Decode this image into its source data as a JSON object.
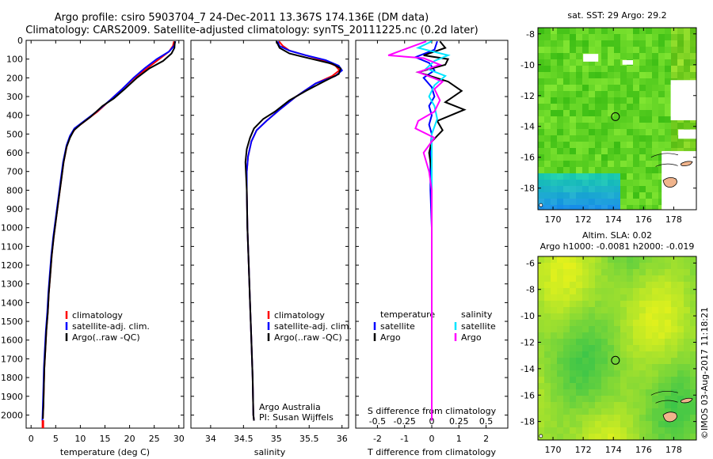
{
  "header": {
    "line1": "Argo profile: csiro 5903704_7 24-Dec-2011 13.367S 174.136E (DM data)",
    "line2": "Climatology: CARS2009. Satellite-adjusted climatology: synTS_20111225.nc (0.2d later)"
  },
  "footer": {
    "credit1": "Argo Australia",
    "credit2": "PI: Susan Wijffels",
    "stamp": "©IMOS 03-Aug-2017 11:18:21"
  },
  "colors": {
    "red": "#ff0000",
    "blue": "#0000ff",
    "black": "#000000",
    "cyan": "#00e5ff",
    "magenta": "#ff00ff"
  },
  "chart_data": [
    {
      "id": "temperature",
      "type": "line",
      "xlabel": "temperature (deg C)",
      "ylabel": "",
      "xlim": [
        -1,
        31
      ],
      "ylim": [
        2070,
        0
      ],
      "xticks": [
        0,
        5,
        10,
        15,
        20,
        25,
        30
      ],
      "yticks": [
        0,
        100,
        200,
        300,
        400,
        500,
        600,
        700,
        800,
        900,
        1000,
        1100,
        1200,
        1300,
        1400,
        1500,
        1600,
        1700,
        1800,
        1900,
        2000
      ],
      "legend": [
        "climatology",
        "satellite-adj. clim.",
        "Argo(..raw -QC)"
      ],
      "legend_position": "lower-left",
      "series": [
        {
          "name": "climatology",
          "color": "red",
          "points": [
            [
              29.0,
              5
            ],
            [
              28.8,
              30
            ],
            [
              28.0,
              60
            ],
            [
              26.0,
              100
            ],
            [
              23.5,
              150
            ],
            [
              21.0,
              200
            ],
            [
              18.5,
              260
            ],
            [
              16.0,
              320
            ],
            [
              13.5,
              380
            ],
            [
              11.0,
              430
            ],
            [
              9.0,
              470
            ],
            [
              8.0,
              510
            ],
            [
              7.3,
              560
            ],
            [
              6.6,
              650
            ],
            [
              6.1,
              750
            ],
            [
              5.6,
              850
            ],
            [
              5.1,
              950
            ],
            [
              4.6,
              1050
            ],
            [
              4.2,
              1150
            ],
            [
              3.9,
              1250
            ],
            [
              3.6,
              1350
            ],
            [
              3.4,
              1450
            ],
            [
              3.1,
              1550
            ],
            [
              2.9,
              1650
            ],
            [
              2.7,
              1750
            ],
            [
              2.6,
              1850
            ],
            [
              2.5,
              1950
            ],
            [
              2.4,
              2020
            ]
          ]
        },
        {
          "name": "satellite-adj. clim.",
          "color": "blue",
          "points": [
            [
              29.3,
              5
            ],
            [
              29.0,
              30
            ],
            [
              28.0,
              60
            ],
            [
              25.5,
              100
            ],
            [
              23.0,
              150
            ],
            [
              20.8,
              200
            ],
            [
              18.5,
              260
            ],
            [
              16.0,
              320
            ],
            [
              13.3,
              380
            ],
            [
              10.8,
              430
            ],
            [
              8.8,
              470
            ],
            [
              7.9,
              510
            ],
            [
              7.2,
              560
            ],
            [
              6.5,
              650
            ],
            [
              6.0,
              750
            ],
            [
              5.5,
              850
            ],
            [
              5.0,
              950
            ],
            [
              4.5,
              1050
            ],
            [
              4.1,
              1150
            ],
            [
              3.8,
              1250
            ],
            [
              3.5,
              1350
            ],
            [
              3.3,
              1450
            ],
            [
              3.0,
              1550
            ],
            [
              2.8,
              1650
            ],
            [
              2.6,
              1750
            ],
            [
              2.5,
              1850
            ],
            [
              2.4,
              1950
            ],
            [
              2.3,
              2030
            ]
          ]
        },
        {
          "name": "Argo(..raw -QC)",
          "color": "black",
          "points": [
            [
              29.2,
              5
            ],
            [
              29.1,
              40
            ],
            [
              28.5,
              70
            ],
            [
              26.8,
              110
            ],
            [
              24.0,
              150
            ],
            [
              21.5,
              200
            ],
            [
              19.0,
              260
            ],
            [
              16.8,
              310
            ],
            [
              14.5,
              350
            ],
            [
              12.0,
              410
            ],
            [
              10.0,
              450
            ],
            [
              8.7,
              480
            ],
            [
              7.9,
              520
            ],
            [
              7.2,
              570
            ],
            [
              6.6,
              650
            ],
            [
              6.1,
              750
            ],
            [
              5.6,
              850
            ],
            [
              5.1,
              950
            ],
            [
              4.6,
              1050
            ],
            [
              4.2,
              1150
            ],
            [
              3.9,
              1250
            ],
            [
              3.6,
              1350
            ],
            [
              3.4,
              1450
            ],
            [
              3.1,
              1550
            ],
            [
              2.9,
              1650
            ],
            [
              2.7,
              1750
            ],
            [
              2.6,
              1850
            ],
            [
              2.5,
              1950
            ],
            [
              2.4,
              2020
            ]
          ]
        }
      ]
    },
    {
      "id": "salinity",
      "type": "line",
      "xlabel": "salinity",
      "ylabel": "",
      "xlim": [
        33.7,
        36.1
      ],
      "ylim": [
        2070,
        0
      ],
      "xticks": [
        34,
        34.5,
        35,
        35.5,
        36
      ],
      "xtick_labels": [
        "34",
        "34.5",
        "35",
        "35.5",
        "36"
      ],
      "legend": [
        "climatology",
        "satellite-adj. clim.",
        "Argo(..raw -QC)"
      ],
      "legend_position": "lower-right",
      "series": [
        {
          "name": "climatology",
          "color": "red",
          "points": [
            [
              35.04,
              5
            ],
            [
              35.1,
              30
            ],
            [
              35.2,
              55
            ],
            [
              35.45,
              80
            ],
            [
              35.7,
              105
            ],
            [
              35.9,
              135
            ],
            [
              35.96,
              160
            ],
            [
              35.85,
              190
            ],
            [
              35.6,
              230
            ],
            [
              35.3,
              300
            ],
            [
              35.05,
              370
            ],
            [
              34.85,
              430
            ],
            [
              34.7,
              480
            ],
            [
              34.62,
              540
            ],
            [
              34.57,
              620
            ],
            [
              34.55,
              700
            ],
            [
              34.55,
              800
            ],
            [
              34.56,
              1000
            ],
            [
              34.58,
              1200
            ],
            [
              34.6,
              1400
            ],
            [
              34.62,
              1600
            ],
            [
              34.64,
              1800
            ],
            [
              34.65,
              2000
            ],
            [
              34.66,
              2030
            ]
          ]
        },
        {
          "name": "satellite-adj. clim.",
          "color": "blue",
          "points": [
            [
              35.02,
              5
            ],
            [
              35.05,
              30
            ],
            [
              35.2,
              55
            ],
            [
              35.45,
              80
            ],
            [
              35.75,
              105
            ],
            [
              35.95,
              135
            ],
            [
              36.0,
              160
            ],
            [
              35.9,
              190
            ],
            [
              35.6,
              230
            ],
            [
              35.3,
              300
            ],
            [
              35.05,
              370
            ],
            [
              34.85,
              430
            ],
            [
              34.7,
              480
            ],
            [
              34.62,
              540
            ],
            [
              34.57,
              620
            ],
            [
              34.55,
              700
            ],
            [
              34.55,
              800
            ],
            [
              34.56,
              1000
            ],
            [
              34.58,
              1200
            ],
            [
              34.6,
              1400
            ],
            [
              34.62,
              1600
            ],
            [
              34.64,
              1800
            ],
            [
              34.65,
              2000
            ],
            [
              34.66,
              2030
            ]
          ]
        },
        {
          "name": "Argo(..raw -QC)",
          "color": "black",
          "points": [
            [
              35.0,
              5
            ],
            [
              35.05,
              40
            ],
            [
              35.2,
              70
            ],
            [
              35.55,
              100
            ],
            [
              35.85,
              125
            ],
            [
              35.98,
              150
            ],
            [
              35.95,
              180
            ],
            [
              35.75,
              215
            ],
            [
              35.45,
              270
            ],
            [
              35.2,
              320
            ],
            [
              34.98,
              380
            ],
            [
              34.8,
              420
            ],
            [
              34.66,
              470
            ],
            [
              34.6,
              520
            ],
            [
              34.55,
              580
            ],
            [
              34.53,
              650
            ],
            [
              34.54,
              720
            ],
            [
              34.55,
              800
            ],
            [
              34.56,
              1000
            ],
            [
              34.58,
              1200
            ],
            [
              34.6,
              1400
            ],
            [
              34.62,
              1600
            ],
            [
              34.64,
              1800
            ],
            [
              34.65,
              2000
            ],
            [
              34.66,
              2030
            ]
          ]
        }
      ]
    },
    {
      "id": "differences",
      "type": "line",
      "xlabel": "T difference from climatology",
      "xlabel_top": "S difference from climatology",
      "xlim": [
        -2.8,
        2.8
      ],
      "ylim": [
        2070,
        0
      ],
      "xticks": [
        -2,
        -1,
        0,
        1,
        2
      ],
      "s_tick_labels": [
        "-0.5",
        "-0.25",
        "0",
        "0.25",
        "0.5"
      ],
      "legend_left_title": "temperature",
      "legend_right_title": "salinity",
      "legend_left": [
        "satellite",
        "Argo"
      ],
      "legend_right": [
        "satellite",
        "Argo"
      ],
      "series": [
        {
          "name": "T satellite",
          "color": "blue",
          "points": [
            [
              0.2,
              5
            ],
            [
              0.1,
              50
            ],
            [
              -0.6,
              90
            ],
            [
              -0.1,
              120
            ],
            [
              0.1,
              160
            ],
            [
              -0.3,
              200
            ],
            [
              0.0,
              250
            ],
            [
              0.1,
              300
            ],
            [
              -0.1,
              350
            ],
            [
              0.0,
              400
            ],
            [
              -0.1,
              450
            ],
            [
              0.0,
              500
            ],
            [
              -0.05,
              600
            ],
            [
              -0.05,
              800
            ],
            [
              0.0,
              1000
            ],
            [
              0.0,
              1500
            ],
            [
              0.0,
              2030
            ]
          ]
        },
        {
          "name": "T Argo",
          "color": "black",
          "points": [
            [
              0.3,
              5
            ],
            [
              0.5,
              40
            ],
            [
              -0.3,
              80
            ],
            [
              0.6,
              100
            ],
            [
              0.5,
              130
            ],
            [
              -0.5,
              170
            ],
            [
              0.6,
              220
            ],
            [
              1.1,
              270
            ],
            [
              0.5,
              330
            ],
            [
              1.2,
              370
            ],
            [
              0.2,
              430
            ],
            [
              0.4,
              480
            ],
            [
              0.0,
              540
            ],
            [
              -0.1,
              600
            ],
            [
              0.0,
              700
            ],
            [
              0.0,
              800
            ],
            [
              0.0,
              1000
            ],
            [
              0.0,
              1500
            ],
            [
              0.0,
              2030
            ]
          ]
        },
        {
          "name": "S satellite",
          "color": "cyan",
          "points": [
            [
              0.0,
              5
            ],
            [
              -0.5,
              40
            ],
            [
              0.6,
              80
            ],
            [
              0.1,
              110
            ],
            [
              -0.2,
              150
            ],
            [
              0.5,
              190
            ],
            [
              0.1,
              240
            ],
            [
              -0.1,
              300
            ],
            [
              0.1,
              350
            ],
            [
              0.2,
              420
            ],
            [
              0.0,
              500
            ],
            [
              0.0,
              700
            ],
            [
              0.0,
              1000
            ],
            [
              0.0,
              1500
            ],
            [
              0.0,
              2030
            ]
          ]
        },
        {
          "name": "S Argo",
          "color": "magenta",
          "points": [
            [
              -0.2,
              5
            ],
            [
              -1.6,
              80
            ],
            [
              -0.3,
              95
            ],
            [
              0.3,
              130
            ],
            [
              -0.5,
              170
            ],
            [
              0.4,
              220
            ],
            [
              0.1,
              260
            ],
            [
              0.3,
              320
            ],
            [
              0.1,
              380
            ],
            [
              -0.5,
              430
            ],
            [
              -0.6,
              470
            ],
            [
              0.1,
              520
            ],
            [
              -0.3,
              600
            ],
            [
              -0.1,
              700
            ],
            [
              0.0,
              800
            ],
            [
              0.0,
              1000
            ],
            [
              0.0,
              1500
            ],
            [
              0.0,
              2030
            ]
          ]
        }
      ]
    },
    {
      "id": "sst_map",
      "type": "heatmap",
      "title": "sat. SST: 29 Argo: 29.2",
      "xlim": [
        169,
        179.5
      ],
      "ylim": [
        -19.4,
        -7.6
      ],
      "xticks": [
        170,
        172,
        174,
        176,
        178
      ],
      "yticks": [
        -8,
        -10,
        -12,
        -14,
        -16,
        -18
      ],
      "argo_position": [
        174.136,
        -13.367
      ]
    },
    {
      "id": "sla_map",
      "type": "heatmap",
      "title": "Altim. SLA: 0.02",
      "subtitle": "Argo h1000: -0.0081 h2000: -0.019",
      "xlim": [
        169,
        179.5
      ],
      "ylim": [
        -19.4,
        -5.5
      ],
      "xticks": [
        170,
        172,
        174,
        176,
        178
      ],
      "yticks": [
        -6,
        -8,
        -10,
        -12,
        -14,
        -16,
        -18
      ],
      "argo_position": [
        174.136,
        -13.367
      ]
    }
  ]
}
